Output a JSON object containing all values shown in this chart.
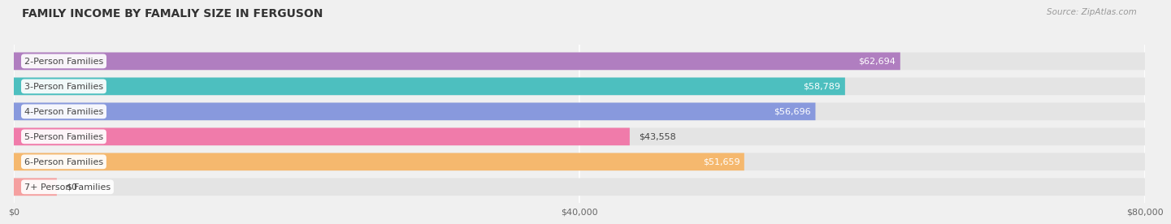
{
  "title": "FAMILY INCOME BY FAMALIY SIZE IN FERGUSON",
  "source": "Source: ZipAtlas.com",
  "categories": [
    "2-Person Families",
    "3-Person Families",
    "4-Person Families",
    "5-Person Families",
    "6-Person Families",
    "7+ Person Families"
  ],
  "values": [
    62694,
    58789,
    56696,
    43558,
    51659,
    0
  ],
  "bar_colors": [
    "#b07ec0",
    "#4dbfbf",
    "#8899dd",
    "#f07baa",
    "#f5b86e",
    "#f5a0a0"
  ],
  "bar_label_colors": [
    "white",
    "white",
    "white",
    "black",
    "white",
    "black"
  ],
  "value_labels": [
    "$62,694",
    "$58,789",
    "$56,696",
    "$43,558",
    "$51,659",
    "$0"
  ],
  "xlim": [
    0,
    80000
  ],
  "xticks": [
    0,
    40000,
    80000
  ],
  "xtick_labels": [
    "$0",
    "$40,000",
    "$80,000"
  ],
  "background_color": "#f0f0f0",
  "bar_background_color": "#e4e4e4",
  "title_fontsize": 10,
  "label_fontsize": 8,
  "value_fontsize": 8,
  "bar_height": 0.7
}
